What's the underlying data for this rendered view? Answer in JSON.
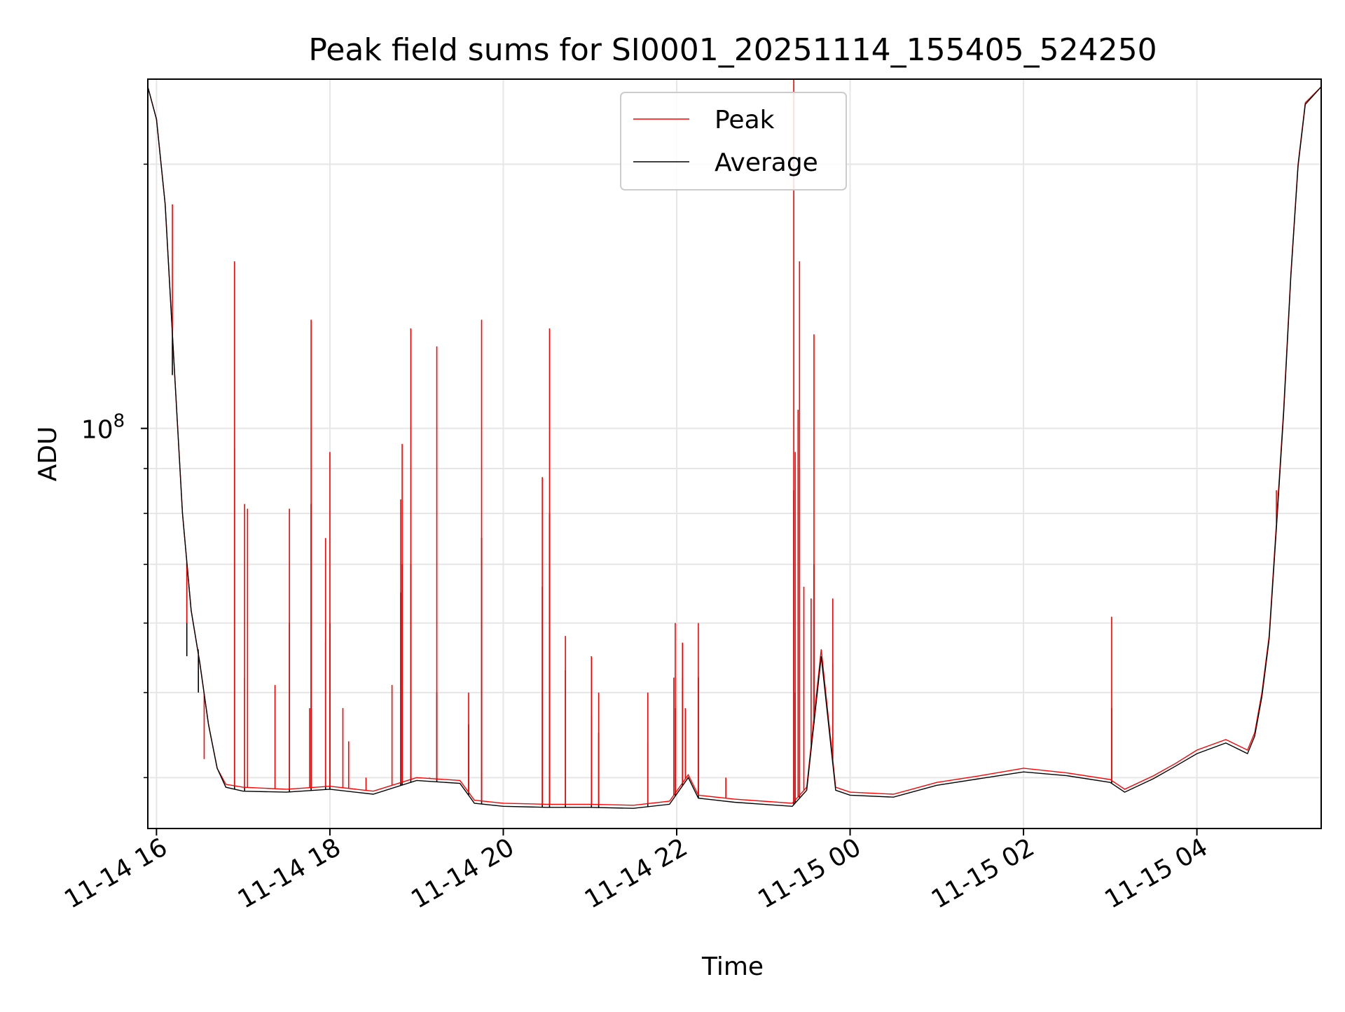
{
  "chart_data": {
    "type": "line",
    "title": "Peak field sums for SI0001_20251114_155405_524250",
    "xlabel": "Time",
    "ylabel": "ADU",
    "y_scale": "log",
    "ylim": [
      35000000,
      250000000
    ],
    "xlim": [
      "2025-11-14T15:54",
      "2025-11-15T05:26"
    ],
    "grid": true,
    "legend": {
      "placement": "top-center"
    },
    "x_ticks": [
      {
        "t": "2025-11-14T16:00",
        "label": "11-14 16"
      },
      {
        "t": "2025-11-14T18:00",
        "label": "11-14 18"
      },
      {
        "t": "2025-11-14T20:00",
        "label": "11-14 20"
      },
      {
        "t": "2025-11-14T22:00",
        "label": "11-14 22"
      },
      {
        "t": "2025-11-15T00:00",
        "label": "11-15 00"
      },
      {
        "t": "2025-11-15T02:00",
        "label": "11-15 02"
      },
      {
        "t": "2025-11-15T04:00",
        "label": "11-15 04"
      }
    ],
    "y_major_ticks": [
      {
        "value": 100000000,
        "label_base": "10",
        "label_exp": "8"
      }
    ],
    "y_minor_ticks": [
      40000000,
      50000000,
      60000000,
      70000000,
      80000000,
      90000000,
      200000000
    ],
    "series": [
      {
        "name": "Peak",
        "color": "#ff0000",
        "baseline": [
          [
            "2025-11-14T15:54",
            245000000
          ],
          [
            "2025-11-14T16:00",
            225000000
          ],
          [
            "2025-11-14T16:06",
            180000000
          ],
          [
            "2025-11-14T16:12",
            120000000
          ],
          [
            "2025-11-14T16:18",
            80000000
          ],
          [
            "2025-11-14T16:24",
            62000000
          ],
          [
            "2025-11-14T16:30",
            54000000
          ],
          [
            "2025-11-14T16:36",
            46000000
          ],
          [
            "2025-11-14T16:42",
            41000000
          ],
          [
            "2025-11-14T16:48",
            39300000
          ],
          [
            "2025-11-14T17:00",
            39000000
          ],
          [
            "2025-11-14T17:30",
            38800000
          ],
          [
            "2025-11-14T18:00",
            39100000
          ],
          [
            "2025-11-14T18:30",
            38600000
          ],
          [
            "2025-11-14T19:00",
            40000000
          ],
          [
            "2025-11-14T19:30",
            39700000
          ],
          [
            "2025-11-14T19:40",
            37700000
          ],
          [
            "2025-11-14T20:00",
            37400000
          ],
          [
            "2025-11-14T20:30",
            37300000
          ],
          [
            "2025-11-14T21:00",
            37300000
          ],
          [
            "2025-11-14T21:30",
            37200000
          ],
          [
            "2025-11-14T21:55",
            37600000
          ],
          [
            "2025-11-14T22:08",
            40300000
          ],
          [
            "2025-11-14T22:15",
            38200000
          ],
          [
            "2025-11-14T22:40",
            37800000
          ],
          [
            "2025-11-14T23:00",
            37600000
          ],
          [
            "2025-11-14T23:20",
            37400000
          ],
          [
            "2025-11-14T23:30",
            39000000
          ],
          [
            "2025-11-14T23:40",
            56000000
          ],
          [
            "2025-11-14T23:50",
            39000000
          ],
          [
            "2025-11-15T00:00",
            38500000
          ],
          [
            "2025-11-15T00:30",
            38300000
          ],
          [
            "2025-11-15T01:00",
            39500000
          ],
          [
            "2025-11-15T01:30",
            40200000
          ],
          [
            "2025-11-15T02:00",
            41000000
          ],
          [
            "2025-11-15T02:30",
            40500000
          ],
          [
            "2025-11-15T03:00",
            39800000
          ],
          [
            "2025-11-15T03:10",
            38800000
          ],
          [
            "2025-11-15T03:30",
            40200000
          ],
          [
            "2025-11-15T03:45",
            41500000
          ],
          [
            "2025-11-15T04:00",
            43000000
          ],
          [
            "2025-11-15T04:20",
            44200000
          ],
          [
            "2025-11-15T04:35",
            43000000
          ],
          [
            "2025-11-15T04:40",
            45000000
          ],
          [
            "2025-11-15T04:45",
            50000000
          ],
          [
            "2025-11-15T04:50",
            58000000
          ],
          [
            "2025-11-15T04:55",
            78000000
          ],
          [
            "2025-11-15T05:00",
            105000000
          ],
          [
            "2025-11-15T05:05",
            150000000
          ],
          [
            "2025-11-15T05:10",
            200000000
          ],
          [
            "2025-11-15T05:15",
            235000000
          ],
          [
            "2025-11-15T05:26",
            245000000
          ]
        ],
        "spikes": [
          [
            "2025-11-14T16:11",
            180000000
          ],
          [
            "2025-11-14T16:21",
            60000000
          ],
          [
            "2025-11-14T16:29",
            56000000
          ],
          [
            "2025-11-14T16:33",
            42000000
          ],
          [
            "2025-11-14T16:54",
            155000000
          ],
          [
            "2025-11-14T17:01",
            82000000
          ],
          [
            "2025-11-14T17:03",
            81000000
          ],
          [
            "2025-11-14T17:22",
            51000000
          ],
          [
            "2025-11-14T17:32",
            81000000
          ],
          [
            "2025-11-14T17:46",
            48000000
          ],
          [
            "2025-11-14T17:47",
            133000000
          ],
          [
            "2025-11-14T17:57",
            75000000
          ],
          [
            "2025-11-14T18:00",
            94000000
          ],
          [
            "2025-11-14T18:09",
            48000000
          ],
          [
            "2025-11-14T18:13",
            44000000
          ],
          [
            "2025-11-14T18:25",
            40000000
          ],
          [
            "2025-11-14T18:43",
            51000000
          ],
          [
            "2025-11-14T18:49",
            83000000
          ],
          [
            "2025-11-14T18:50",
            96000000
          ],
          [
            "2025-11-14T18:56",
            130000000
          ],
          [
            "2025-11-14T19:09",
            40000000
          ],
          [
            "2025-11-14T19:14",
            124000000
          ],
          [
            "2025-11-14T19:36",
            50000000
          ],
          [
            "2025-11-14T19:45",
            133000000
          ],
          [
            "2025-11-14T20:27",
            88000000
          ],
          [
            "2025-11-14T20:32",
            130000000
          ],
          [
            "2025-11-14T20:43",
            58000000
          ],
          [
            "2025-11-14T21:01",
            55000000
          ],
          [
            "2025-11-14T21:06",
            50000000
          ],
          [
            "2025-11-14T21:40",
            50000000
          ],
          [
            "2025-11-14T21:58",
            52000000
          ],
          [
            "2025-11-14T21:59",
            60000000
          ],
          [
            "2025-11-14T22:04",
            57000000
          ],
          [
            "2025-11-14T22:06",
            48000000
          ],
          [
            "2025-11-14T22:15",
            60000000
          ],
          [
            "2025-11-14T22:34",
            40000000
          ],
          [
            "2025-11-14T23:21",
            250000000
          ],
          [
            "2025-11-14T23:22",
            94000000
          ],
          [
            "2025-11-14T23:24",
            105000000
          ],
          [
            "2025-11-14T23:25",
            155000000
          ],
          [
            "2025-11-14T23:28",
            66000000
          ],
          [
            "2025-11-14T23:33",
            64000000
          ],
          [
            "2025-11-14T23:35",
            128000000
          ],
          [
            "2025-11-14T23:48",
            64000000
          ],
          [
            "2025-11-15T03:01",
            61000000
          ],
          [
            "2025-11-15T04:55",
            85000000
          ]
        ]
      },
      {
        "name": "Average",
        "color": "#000000",
        "baseline": [
          [
            "2025-11-14T15:54",
            245000000
          ],
          [
            "2025-11-14T16:00",
            225000000
          ],
          [
            "2025-11-14T16:06",
            180000000
          ],
          [
            "2025-11-14T16:12",
            120000000
          ],
          [
            "2025-11-14T16:18",
            80000000
          ],
          [
            "2025-11-14T16:24",
            62000000
          ],
          [
            "2025-11-14T16:30",
            54000000
          ],
          [
            "2025-11-14T16:36",
            46000000
          ],
          [
            "2025-11-14T16:42",
            41000000
          ],
          [
            "2025-11-14T16:48",
            39000000
          ],
          [
            "2025-11-14T17:00",
            38600000
          ],
          [
            "2025-11-14T17:30",
            38500000
          ],
          [
            "2025-11-14T18:00",
            38800000
          ],
          [
            "2025-11-14T18:30",
            38300000
          ],
          [
            "2025-11-14T19:00",
            39700000
          ],
          [
            "2025-11-14T19:30",
            39400000
          ],
          [
            "2025-11-14T19:40",
            37400000
          ],
          [
            "2025-11-14T20:00",
            37100000
          ],
          [
            "2025-11-14T20:30",
            37000000
          ],
          [
            "2025-11-14T21:00",
            37000000
          ],
          [
            "2025-11-14T21:30",
            36900000
          ],
          [
            "2025-11-14T21:55",
            37300000
          ],
          [
            "2025-11-14T22:08",
            40000000
          ],
          [
            "2025-11-14T22:15",
            37900000
          ],
          [
            "2025-11-14T22:40",
            37500000
          ],
          [
            "2025-11-14T23:00",
            37300000
          ],
          [
            "2025-11-14T23:20",
            37100000
          ],
          [
            "2025-11-14T23:30",
            38700000
          ],
          [
            "2025-11-14T23:40",
            55000000
          ],
          [
            "2025-11-14T23:50",
            38700000
          ],
          [
            "2025-11-15T00:00",
            38200000
          ],
          [
            "2025-11-15T00:30",
            38000000
          ],
          [
            "2025-11-15T01:00",
            39200000
          ],
          [
            "2025-11-15T01:30",
            39900000
          ],
          [
            "2025-11-15T02:00",
            40600000
          ],
          [
            "2025-11-15T02:30",
            40200000
          ],
          [
            "2025-11-15T03:00",
            39500000
          ],
          [
            "2025-11-15T03:10",
            38500000
          ],
          [
            "2025-11-15T03:30",
            39900000
          ],
          [
            "2025-11-15T03:45",
            41200000
          ],
          [
            "2025-11-15T04:00",
            42600000
          ],
          [
            "2025-11-15T04:20",
            43800000
          ],
          [
            "2025-11-15T04:35",
            42600000
          ],
          [
            "2025-11-15T04:40",
            44600000
          ],
          [
            "2025-11-15T04:45",
            49500000
          ],
          [
            "2025-11-15T04:50",
            57500000
          ],
          [
            "2025-11-15T04:55",
            77000000
          ],
          [
            "2025-11-15T05:00",
            104000000
          ],
          [
            "2025-11-15T05:05",
            149000000
          ],
          [
            "2025-11-15T05:10",
            199000000
          ],
          [
            "2025-11-15T05:15",
            234000000
          ],
          [
            "2025-11-15T05:26",
            245000000
          ]
        ],
        "spikes": [
          [
            "2025-11-14T16:11",
            115000000
          ],
          [
            "2025-11-14T16:21",
            55000000
          ],
          [
            "2025-11-14T16:29",
            50000000
          ],
          [
            "2025-11-14T16:54",
            95000000
          ],
          [
            "2025-11-14T17:01",
            52000000
          ],
          [
            "2025-11-14T17:32",
            60000000
          ],
          [
            "2025-11-14T17:47",
            82000000
          ],
          [
            "2025-11-14T17:57",
            57000000
          ],
          [
            "2025-11-14T18:00",
            60000000
          ],
          [
            "2025-11-14T18:49",
            65000000
          ],
          [
            "2025-11-14T18:50",
            70000000
          ],
          [
            "2025-11-14T18:56",
            70000000
          ],
          [
            "2025-11-14T19:14",
            50000000
          ],
          [
            "2025-11-14T19:36",
            46000000
          ],
          [
            "2025-11-14T19:45",
            75000000
          ],
          [
            "2025-11-14T20:27",
            66000000
          ],
          [
            "2025-11-14T20:32",
            80000000
          ],
          [
            "2025-11-14T20:43",
            53000000
          ],
          [
            "2025-11-14T21:01",
            47000000
          ],
          [
            "2025-11-14T21:06",
            45000000
          ],
          [
            "2025-11-14T21:40",
            44000000
          ],
          [
            "2025-11-14T21:59",
            48000000
          ],
          [
            "2025-11-14T22:04",
            52000000
          ],
          [
            "2025-11-14T22:15",
            52000000
          ],
          [
            "2025-11-14T23:21",
            85000000
          ],
          [
            "2025-11-14T23:22",
            50000000
          ],
          [
            "2025-11-14T23:25",
            90000000
          ],
          [
            "2025-11-14T23:35",
            70000000
          ],
          [
            "2025-11-14T23:48",
            54000000
          ],
          [
            "2025-11-15T03:01",
            48000000
          ]
        ]
      }
    ]
  }
}
